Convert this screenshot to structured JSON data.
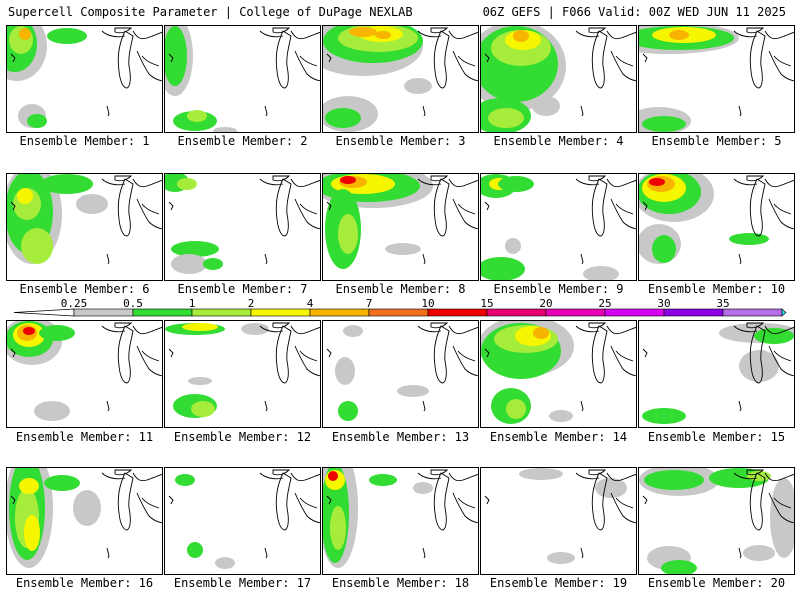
{
  "header": {
    "left": "Supercell Composite Parameter | College of DuPage NEXLAB",
    "right": "06Z GEFS | F066 Valid: 00Z WED JUN 11 2025"
  },
  "colorbar": {
    "labels": [
      "0.25",
      "0.5",
      "1",
      "2",
      "4",
      "7",
      "10",
      "15",
      "20",
      "25",
      "30",
      "35"
    ],
    "colors": [
      "#c8c8c8",
      "#32dc32",
      "#a6ec3a",
      "#f6f600",
      "#f7b400",
      "#f07020",
      "#ee0000",
      "#e80070",
      "#e800b4",
      "#d800f0",
      "#8c00e6",
      "#b46ee6",
      "#28e6f0"
    ]
  },
  "members": [
    {
      "label": "Ensemble Member: 1"
    },
    {
      "label": "Ensemble Member: 2"
    },
    {
      "label": "Ensemble Member: 3"
    },
    {
      "label": "Ensemble Member: 4"
    },
    {
      "label": "Ensemble Member: 5"
    },
    {
      "label": "Ensemble Member: 6"
    },
    {
      "label": "Ensemble Member: 7"
    },
    {
      "label": "Ensemble Member: 8"
    },
    {
      "label": "Ensemble Member: 9"
    },
    {
      "label": "Ensemble Member: 10"
    },
    {
      "label": "Ensemble Member: 11"
    },
    {
      "label": "Ensemble Member: 12"
    },
    {
      "label": "Ensemble Member: 13"
    },
    {
      "label": "Ensemble Member: 14"
    },
    {
      "label": "Ensemble Member: 15"
    },
    {
      "label": "Ensemble Member: 16"
    },
    {
      "label": "Ensemble Member: 17"
    },
    {
      "label": "Ensemble Member: 18"
    },
    {
      "label": "Ensemble Member: 19"
    },
    {
      "label": "Ensemble Member: 20"
    }
  ]
}
